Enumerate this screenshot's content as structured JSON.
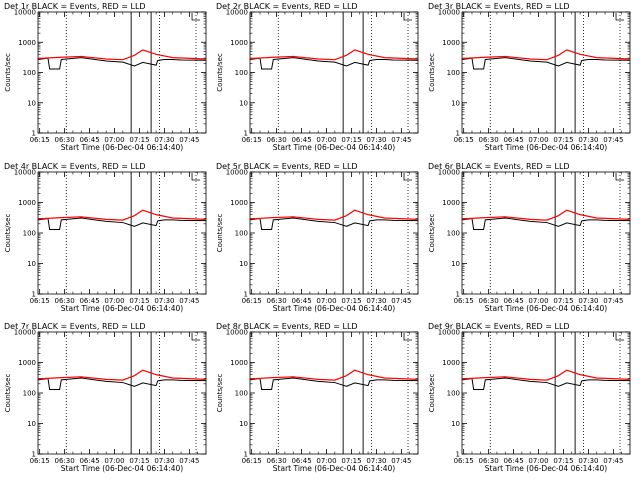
{
  "colors": {
    "events": "#000000",
    "lld": "#ff0000",
    "frame": "#000000",
    "background": "#ffffff"
  },
  "shared": {
    "xlabel": "Start Time (06-Dec-04 06:14:40)",
    "ylabel": "Counts/sec",
    "x_tick_labels": [
      "06:15",
      "06:30",
      "06:45",
      "07:00",
      "07:15",
      "07:30",
      "07:45"
    ],
    "y_tick_labels": [
      "1",
      "10",
      "100",
      "1000",
      "10000"
    ],
    "xlim": [
      "06:14",
      "07:55"
    ],
    "ylim": [
      1,
      10000
    ],
    "y_scale": "log",
    "x_tick_minutes": [
      15,
      30,
      45,
      60,
      75,
      90,
      105
    ],
    "dotted_markers": [
      "06:31",
      "07:27",
      "07:49"
    ],
    "solid_markers": [
      "07:10",
      "07:22"
    ],
    "legend_marker": "top-right bracket"
  },
  "chart_data": [
    {
      "type": "line",
      "title": "Det 1r BLACK = Events, RED = LLD",
      "xlabel": "Start Time (06-Dec-04 06:14:40)",
      "ylabel": "Counts/sec",
      "series": [
        {
          "name": "Events",
          "x": [
            "06:14",
            "06:20",
            "06:21",
            "06:27",
            "06:28",
            "06:40",
            "06:55",
            "07:05",
            "07:12",
            "07:17",
            "07:25",
            "07:26",
            "07:30",
            "07:35",
            "07:40",
            "07:55"
          ],
          "y": [
            270,
            300,
            130,
            130,
            270,
            310,
            240,
            220,
            165,
            215,
            175,
            250,
            270,
            270,
            260,
            255
          ]
        },
        {
          "name": "LLD",
          "x": [
            "06:14",
            "06:28",
            "06:40",
            "06:55",
            "07:05",
            "07:12",
            "07:17",
            "07:25",
            "07:35",
            "07:55"
          ],
          "y": [
            290,
            320,
            340,
            280,
            265,
            370,
            560,
            400,
            310,
            280
          ]
        }
      ]
    },
    {
      "type": "line",
      "title": "Det 2r BLACK = Events, RED = LLD",
      "xlabel": "Start Time (06-Dec-04 06:14:40)",
      "ylabel": "Counts/sec",
      "series": [
        {
          "name": "Events",
          "x": [
            "06:14",
            "06:20",
            "06:21",
            "06:27",
            "06:28",
            "06:40",
            "06:55",
            "07:05",
            "07:12",
            "07:17",
            "07:25",
            "07:26",
            "07:30",
            "07:35",
            "07:40",
            "07:55"
          ],
          "y": [
            270,
            300,
            130,
            130,
            270,
            310,
            240,
            220,
            165,
            215,
            175,
            250,
            270,
            270,
            260,
            255
          ]
        },
        {
          "name": "LLD",
          "x": [
            "06:14",
            "06:28",
            "06:40",
            "06:55",
            "07:05",
            "07:12",
            "07:17",
            "07:25",
            "07:35",
            "07:55"
          ],
          "y": [
            290,
            320,
            340,
            280,
            265,
            370,
            560,
            400,
            310,
            280
          ]
        }
      ]
    },
    {
      "type": "line",
      "title": "Det 3r BLACK = Events, RED = LLD",
      "xlabel": "Start Time (06-Dec-04 06:14:40)",
      "ylabel": "Counts/sec",
      "series": [
        {
          "name": "Events",
          "x": [
            "06:14",
            "06:20",
            "06:21",
            "06:27",
            "06:28",
            "06:40",
            "06:55",
            "07:05",
            "07:12",
            "07:17",
            "07:25",
            "07:26",
            "07:30",
            "07:35",
            "07:40",
            "07:55"
          ],
          "y": [
            270,
            300,
            130,
            130,
            270,
            310,
            240,
            220,
            165,
            215,
            175,
            250,
            270,
            270,
            260,
            255
          ]
        },
        {
          "name": "LLD",
          "x": [
            "06:14",
            "06:28",
            "06:40",
            "06:55",
            "07:05",
            "07:12",
            "07:17",
            "07:25",
            "07:35",
            "07:55"
          ],
          "y": [
            290,
            320,
            340,
            280,
            265,
            370,
            560,
            400,
            310,
            280
          ]
        }
      ]
    },
    {
      "type": "line",
      "title": "Det 4r BLACK = Events, RED = LLD",
      "xlabel": "Start Time (06-Dec-04 06:14:40)",
      "ylabel": "Counts/sec",
      "series": [
        {
          "name": "Events",
          "x": [
            "06:14",
            "06:20",
            "06:21",
            "06:27",
            "06:28",
            "06:40",
            "06:55",
            "07:05",
            "07:12",
            "07:17",
            "07:25",
            "07:26",
            "07:30",
            "07:35",
            "07:40",
            "07:55"
          ],
          "y": [
            270,
            300,
            130,
            130,
            270,
            310,
            240,
            220,
            165,
            215,
            175,
            250,
            270,
            270,
            260,
            255
          ]
        },
        {
          "name": "LLD",
          "x": [
            "06:14",
            "06:28",
            "06:40",
            "06:55",
            "07:05",
            "07:12",
            "07:17",
            "07:25",
            "07:35",
            "07:55"
          ],
          "y": [
            290,
            320,
            340,
            280,
            265,
            370,
            560,
            400,
            310,
            280
          ]
        }
      ]
    },
    {
      "type": "line",
      "title": "Det 5r BLACK = Events, RED = LLD",
      "xlabel": "Start Time (06-Dec-04 06:14:40)",
      "ylabel": "Counts/sec",
      "series": [
        {
          "name": "Events",
          "x": [
            "06:14",
            "06:20",
            "06:21",
            "06:27",
            "06:28",
            "06:40",
            "06:55",
            "07:05",
            "07:12",
            "07:17",
            "07:25",
            "07:26",
            "07:30",
            "07:35",
            "07:40",
            "07:55"
          ],
          "y": [
            270,
            300,
            130,
            130,
            270,
            310,
            240,
            220,
            165,
            215,
            175,
            250,
            270,
            270,
            260,
            255
          ]
        },
        {
          "name": "LLD",
          "x": [
            "06:14",
            "06:28",
            "06:40",
            "06:55",
            "07:05",
            "07:12",
            "07:17",
            "07:25",
            "07:35",
            "07:55"
          ],
          "y": [
            290,
            320,
            340,
            280,
            265,
            370,
            560,
            400,
            310,
            280
          ]
        }
      ]
    },
    {
      "type": "line",
      "title": "Det 6r BLACK = Events, RED = LLD",
      "xlabel": "Start Time (06-Dec-04 06:14:40)",
      "ylabel": "Counts/sec",
      "series": [
        {
          "name": "Events",
          "x": [
            "06:14",
            "06:20",
            "06:21",
            "06:27",
            "06:28",
            "06:40",
            "06:55",
            "07:05",
            "07:12",
            "07:17",
            "07:25",
            "07:26",
            "07:30",
            "07:35",
            "07:40",
            "07:55"
          ],
          "y": [
            270,
            300,
            130,
            130,
            270,
            310,
            240,
            220,
            165,
            215,
            175,
            250,
            270,
            270,
            260,
            255
          ]
        },
        {
          "name": "LLD",
          "x": [
            "06:14",
            "06:28",
            "06:40",
            "06:55",
            "07:05",
            "07:12",
            "07:17",
            "07:25",
            "07:35",
            "07:55"
          ],
          "y": [
            290,
            320,
            340,
            280,
            265,
            370,
            560,
            400,
            310,
            280
          ]
        }
      ]
    },
    {
      "type": "line",
      "title": "Det 7r BLACK = Events, RED = LLD",
      "xlabel": "Start Time (06-Dec-04 06:14:40)",
      "ylabel": "Counts/sec",
      "series": [
        {
          "name": "Events",
          "x": [
            "06:14",
            "06:20",
            "06:21",
            "06:27",
            "06:28",
            "06:40",
            "06:55",
            "07:05",
            "07:12",
            "07:17",
            "07:25",
            "07:26",
            "07:30",
            "07:35",
            "07:40",
            "07:55"
          ],
          "y": [
            270,
            300,
            130,
            130,
            270,
            310,
            240,
            220,
            165,
            215,
            175,
            250,
            270,
            270,
            260,
            255
          ]
        },
        {
          "name": "LLD",
          "x": [
            "06:14",
            "06:28",
            "06:40",
            "06:55",
            "07:05",
            "07:12",
            "07:17",
            "07:25",
            "07:35",
            "07:55"
          ],
          "y": [
            290,
            320,
            340,
            280,
            265,
            370,
            560,
            400,
            310,
            280
          ]
        }
      ]
    },
    {
      "type": "line",
      "title": "Det 8r BLACK = Events, RED = LLD",
      "xlabel": "Start Time (06-Dec-04 06:14:40)",
      "ylabel": "Counts/sec",
      "series": [
        {
          "name": "Events",
          "x": [
            "06:14",
            "06:20",
            "06:21",
            "06:27",
            "06:28",
            "06:40",
            "06:55",
            "07:05",
            "07:12",
            "07:17",
            "07:25",
            "07:26",
            "07:30",
            "07:35",
            "07:40",
            "07:55"
          ],
          "y": [
            270,
            300,
            130,
            130,
            270,
            310,
            240,
            220,
            165,
            215,
            175,
            250,
            270,
            270,
            260,
            255
          ]
        },
        {
          "name": "LLD",
          "x": [
            "06:14",
            "06:28",
            "06:40",
            "06:55",
            "07:05",
            "07:12",
            "07:17",
            "07:25",
            "07:35",
            "07:55"
          ],
          "y": [
            290,
            320,
            340,
            280,
            265,
            370,
            560,
            400,
            310,
            280
          ]
        }
      ]
    },
    {
      "type": "line",
      "title": "Det 9r BLACK = Events, RED = LLD",
      "xlabel": "Start Time (06-Dec-04 06:14:40)",
      "ylabel": "Counts/sec",
      "series": [
        {
          "name": "Events",
          "x": [
            "06:14",
            "06:20",
            "06:21",
            "06:27",
            "06:28",
            "06:40",
            "06:55",
            "07:05",
            "07:12",
            "07:17",
            "07:25",
            "07:26",
            "07:30",
            "07:35",
            "07:40",
            "07:55"
          ],
          "y": [
            270,
            300,
            130,
            130,
            270,
            310,
            240,
            220,
            165,
            215,
            175,
            250,
            270,
            270,
            260,
            255
          ]
        },
        {
          "name": "LLD",
          "x": [
            "06:14",
            "06:28",
            "06:40",
            "06:55",
            "07:05",
            "07:12",
            "07:17",
            "07:25",
            "07:35",
            "07:55"
          ],
          "y": [
            290,
            320,
            340,
            280,
            265,
            370,
            560,
            400,
            310,
            280
          ]
        }
      ]
    }
  ]
}
